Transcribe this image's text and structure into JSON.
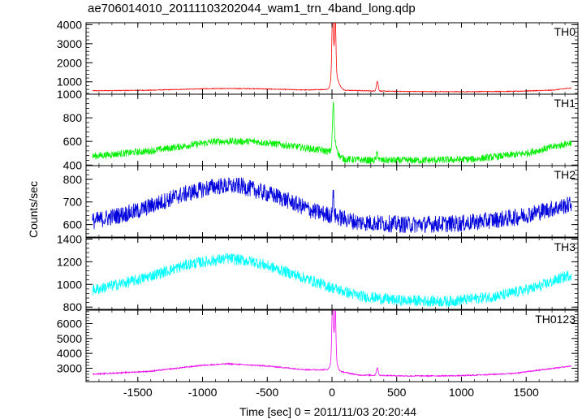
{
  "title": "ae706014010_20111103202044_wam1_trn_4band_long.qdp",
  "chart_data": {
    "type": "line",
    "title": "ae706014010_20111103202044_wam1_trn_4band_long.qdp",
    "xlabel": "Time [sec] 0 = 2011/11/03 20:20:44",
    "ylabel": "Counts/sec",
    "xlim": [
      -1900,
      1900
    ],
    "x_ticks": [
      -1500,
      -1000,
      -500,
      0,
      500,
      1000,
      1500
    ],
    "grid": false,
    "legend": "none",
    "panels": [
      {
        "name": "TH0",
        "color": "#ff0000",
        "ylim": [
          350,
          4100
        ],
        "y_ticks": [
          1000,
          2000,
          3000,
          4000
        ],
        "baseline": [
          [
            -1850,
            530
          ],
          [
            -1400,
            560
          ],
          [
            -900,
            650
          ],
          [
            -600,
            640
          ],
          [
            -200,
            570
          ],
          [
            -50,
            600
          ],
          [
            100,
            560
          ],
          [
            300,
            520
          ],
          [
            600,
            490
          ],
          [
            1000,
            480
          ],
          [
            1400,
            500
          ],
          [
            1700,
            560
          ],
          [
            1850,
            680
          ]
        ],
        "noise": 20,
        "peaks": [
          {
            "x": 5,
            "height": 3400,
            "width": 8
          },
          {
            "x": 25,
            "height": 3000,
            "width": 7
          },
          {
            "x": 15,
            "height": 1100,
            "width": 25
          },
          {
            "x": 45,
            "height": 300,
            "width": 30
          },
          {
            "x": 350,
            "height": 500,
            "width": 10
          }
        ]
      },
      {
        "name": "TH1",
        "color": "#00ee00",
        "ylim": [
          395,
          1000
        ],
        "y_ticks": [
          400,
          600,
          800,
          1000
        ],
        "baseline": [
          [
            -1850,
            475
          ],
          [
            -1400,
            520
          ],
          [
            -900,
            600
          ],
          [
            -600,
            600
          ],
          [
            -300,
            560
          ],
          [
            -50,
            520
          ],
          [
            100,
            450
          ],
          [
            300,
            440
          ],
          [
            700,
            440
          ],
          [
            1100,
            450
          ],
          [
            1500,
            500
          ],
          [
            1850,
            590
          ]
        ],
        "noise": 30,
        "peaks": [
          {
            "x": 10,
            "height": 340,
            "width": 8
          },
          {
            "x": 20,
            "height": 110,
            "width": 25
          },
          {
            "x": 350,
            "height": 60,
            "width": 10
          }
        ]
      },
      {
        "name": "TH2",
        "color": "#0000dd",
        "ylim": [
          545,
          860
        ],
        "y_ticks": [
          600,
          700,
          800
        ],
        "baseline": [
          [
            -1850,
            615
          ],
          [
            -1500,
            660
          ],
          [
            -1200,
            725
          ],
          [
            -900,
            770
          ],
          [
            -700,
            770
          ],
          [
            -400,
            720
          ],
          [
            -150,
            660
          ],
          [
            0,
            640
          ],
          [
            200,
            610
          ],
          [
            600,
            600
          ],
          [
            1000,
            605
          ],
          [
            1400,
            630
          ],
          [
            1850,
            690
          ]
        ],
        "noise": 38,
        "peaks": [
          {
            "x": 10,
            "height": 90,
            "width": 8
          }
        ]
      },
      {
        "name": "TH3",
        "color": "#00ffff",
        "ylim": [
          780,
          1410
        ],
        "y_ticks": [
          800,
          1000,
          1200,
          1400
        ],
        "baseline": [
          [
            -1850,
            950
          ],
          [
            -1500,
            1040
          ],
          [
            -1100,
            1180
          ],
          [
            -800,
            1230
          ],
          [
            -600,
            1200
          ],
          [
            -300,
            1090
          ],
          [
            -50,
            990
          ],
          [
            200,
            900
          ],
          [
            500,
            860
          ],
          [
            900,
            850
          ],
          [
            1300,
            900
          ],
          [
            1600,
            980
          ],
          [
            1850,
            1090
          ]
        ],
        "noise": 50,
        "peaks": []
      },
      {
        "name": "TH0123",
        "color": "#ee00ee",
        "ylim": [
          2100,
          6900
        ],
        "y_ticks": [
          3000,
          4000,
          5000,
          6000
        ],
        "baseline": [
          [
            -1850,
            2600
          ],
          [
            -1400,
            2800
          ],
          [
            -1000,
            3200
          ],
          [
            -800,
            3300
          ],
          [
            -500,
            3150
          ],
          [
            -200,
            2900
          ],
          [
            0,
            2900
          ],
          [
            200,
            2550
          ],
          [
            600,
            2480
          ],
          [
            1000,
            2500
          ],
          [
            1400,
            2650
          ],
          [
            1850,
            3150
          ]
        ],
        "noise": 40,
        "peaks": [
          {
            "x": 5,
            "height": 3800,
            "width": 8
          },
          {
            "x": 25,
            "height": 3300,
            "width": 7
          },
          {
            "x": 15,
            "height": 1300,
            "width": 25
          },
          {
            "x": 350,
            "height": 500,
            "width": 10
          }
        ]
      }
    ]
  }
}
